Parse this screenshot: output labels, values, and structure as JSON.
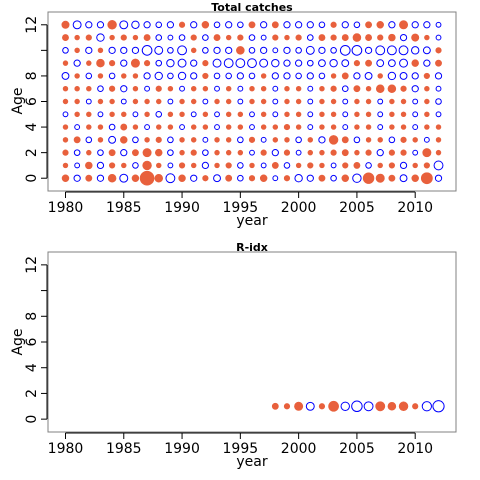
{
  "chart_data": [
    {
      "type": "scatter",
      "title": "Total catches",
      "xlabel": "year",
      "ylabel": "Age",
      "xlim": [
        1978.5,
        2013.5
      ],
      "ylim": [
        -1,
        13
      ],
      "x_ticks": [
        "1980",
        "1985",
        "1990",
        "1995",
        "2000",
        "2005",
        "2010"
      ],
      "y_ticks": [
        "0",
        "2",
        "4",
        "6",
        "8",
        "12"
      ],
      "grid": false,
      "years": [
        1980,
        1981,
        1982,
        1983,
        1984,
        1985,
        1986,
        1987,
        1988,
        1989,
        1990,
        1991,
        1992,
        1993,
        1994,
        1995,
        1996,
        1997,
        1998,
        1999,
        2000,
        2001,
        2002,
        2003,
        2004,
        2005,
        2006,
        2007,
        2008,
        2009,
        2010,
        2011,
        2012
      ],
      "ages": [
        0,
        1,
        2,
        3,
        4,
        5,
        6,
        7,
        8,
        9,
        10,
        11,
        12
      ],
      "encoding": "signed residual; positive = filled red, negative = open blue",
      "residuals": [
        [
          0.6,
          -0.5,
          0.5,
          -0.5,
          0.8,
          -0.8,
          0.6,
          2.5,
          0.8,
          -1.0,
          0.6,
          -0.5,
          0.4,
          -0.6,
          0.5,
          -0.4,
          0.4,
          0.6,
          -0.3,
          0.4,
          -0.7,
          -0.5,
          0.5,
          -0.4,
          0.6,
          -0.9,
          1.5,
          0.9,
          0.5,
          -0.6,
          0.6,
          1.6,
          -0.5
        ],
        [
          0.3,
          -0.3,
          0.6,
          -0.5,
          0.4,
          0.3,
          -0.4,
          1.0,
          0.3,
          -0.3,
          0.4,
          0.3,
          -0.5,
          0.3,
          0.4,
          -0.4,
          0.3,
          -0.3,
          0.5,
          -0.4,
          0.3,
          0.4,
          0.3,
          -0.3,
          0.4,
          0.5,
          -0.4,
          0.3,
          0.4,
          -0.5,
          0.3,
          0.4,
          -1.0
        ],
        [
          0.4,
          -0.4,
          0.3,
          -0.4,
          0.5,
          -0.5,
          0.5,
          0.9,
          0.6,
          -0.4,
          0.3,
          0.4,
          -0.4,
          0.3,
          0.3,
          0.3,
          -0.3,
          0.4,
          -0.5,
          0.4,
          -0.3,
          0.3,
          0.3,
          0.4,
          0.5,
          0.3,
          0.4,
          -0.5,
          0.4,
          0.4,
          -0.3,
          0.9,
          0.3
        ],
        [
          0.3,
          0.5,
          -0.4,
          0.3,
          -0.6,
          0.6,
          -0.4,
          0.3,
          0.4,
          -0.4,
          0.3,
          0.3,
          -0.3,
          0.3,
          0.3,
          -0.4,
          0.4,
          -0.3,
          0.3,
          0.3,
          -0.4,
          0.3,
          -0.5,
          1.0,
          0.5,
          -0.4,
          0.3,
          0.3,
          -0.4,
          0.4,
          0.3,
          -0.3,
          0.3
        ],
        [
          0.3,
          -0.3,
          0.3,
          0.3,
          -0.4,
          0.5,
          0.3,
          -0.3,
          0.3,
          0.3,
          -0.3,
          0.3,
          0.3,
          -0.3,
          0.3,
          0.3,
          -0.3,
          0.3,
          0.3,
          0.4,
          0.3,
          -0.3,
          0.3,
          0.3,
          -0.3,
          0.3,
          0.3,
          -0.3,
          0.3,
          0.3,
          -0.3,
          0.3,
          0.3
        ],
        [
          -0.3,
          0.3,
          0.3,
          -0.3,
          0.3,
          0.3,
          -0.3,
          0.3,
          -0.4,
          0.3,
          0.3,
          -0.3,
          0.3,
          -0.3,
          0.3,
          0.3,
          -0.3,
          0.3,
          -0.3,
          0.3,
          0.3,
          -0.3,
          0.3,
          0.3,
          -0.3,
          0.3,
          0.3,
          -0.3,
          0.3,
          0.3,
          -0.3,
          0.3,
          -0.3
        ],
        [
          0.3,
          0.3,
          -0.3,
          0.3,
          0.3,
          -0.3,
          0.3,
          0.3,
          0.3,
          -0.3,
          0.3,
          0.3,
          -0.3,
          0.3,
          0.3,
          -0.3,
          0.3,
          0.3,
          -0.3,
          0.3,
          0.3,
          -0.3,
          0.3,
          0.3,
          -0.3,
          0.3,
          0.3,
          -0.3,
          0.3,
          0.3,
          -0.3,
          0.3,
          -0.4
        ],
        [
          0.3,
          0.3,
          0.3,
          -0.4,
          0.4,
          -0.5,
          0.3,
          -0.3,
          0.4,
          0.3,
          -0.3,
          0.3,
          0.3,
          -0.3,
          0.3,
          -0.3,
          0.3,
          0.3,
          -0.3,
          0.3,
          0.3,
          -0.3,
          0.3,
          0.4,
          -0.4,
          0.5,
          0.3,
          0.8,
          0.8,
          0.4,
          -0.5,
          0.3,
          -0.3
        ],
        [
          -0.6,
          0.3,
          -0.4,
          0.3,
          -0.4,
          0.3,
          0.3,
          -0.5,
          -0.7,
          -0.4,
          -0.7,
          -0.5,
          0.4,
          -0.4,
          -0.4,
          -0.5,
          -0.4,
          0.3,
          -0.5,
          -0.5,
          -0.4,
          -0.5,
          -0.4,
          0.3,
          0.5,
          -0.5,
          -0.6,
          0.3,
          -0.7,
          -0.6,
          -0.5,
          0.4,
          -0.5
        ],
        [
          0.3,
          -0.5,
          0.3,
          0.8,
          0.4,
          -0.5,
          0.9,
          0.4,
          -0.4,
          -0.7,
          -0.8,
          -0.5,
          0.4,
          -0.8,
          -1.0,
          -1.0,
          -1.0,
          -0.8,
          -0.7,
          -0.5,
          -0.5,
          -0.4,
          -0.6,
          -0.7,
          -0.6,
          0.4,
          0.5,
          -0.6,
          -0.6,
          -0.8,
          0.6,
          -0.5,
          0.5
        ],
        [
          -0.4,
          0.3,
          -0.5,
          0.3,
          -0.5,
          -0.5,
          -0.5,
          -1.2,
          -0.8,
          -0.4,
          -1.0,
          0.3,
          -0.4,
          -0.5,
          -0.5,
          0.8,
          -0.4,
          -0.5,
          -0.3,
          -0.5,
          -0.4,
          -0.8,
          -0.5,
          -0.4,
          -1.2,
          -1.2,
          -0.5,
          -1.0,
          -1.0,
          -1.0,
          -0.7,
          -0.6,
          0.4
        ],
        [
          0.5,
          0.3,
          0.4,
          -0.7,
          0.3,
          0.4,
          0.3,
          0.5,
          -0.4,
          -0.3,
          -0.4,
          0.4,
          -0.4,
          0.5,
          0.3,
          0.4,
          -0.4,
          -0.3,
          0.4,
          0.3,
          0.4,
          -0.4,
          0.5,
          0.4,
          0.5,
          0.8,
          0.5,
          0.4,
          0.6,
          -0.5,
          0.7,
          0.3,
          -0.3
        ],
        [
          0.7,
          -0.8,
          -0.5,
          -0.5,
          1.0,
          -0.8,
          -0.7,
          -0.5,
          -0.4,
          -0.5,
          0.4,
          -0.5,
          0.6,
          -0.4,
          -0.5,
          -0.4,
          0.5,
          -0.5,
          0.5,
          -0.5,
          -0.5,
          -0.5,
          -0.4,
          0.4,
          -0.5,
          -0.4,
          0.5,
          0.6,
          -0.5,
          0.9,
          -0.5,
          -0.5,
          -0.3
        ]
      ]
    },
    {
      "type": "scatter",
      "title": "R-idx",
      "xlabel": "year",
      "ylabel": "Age",
      "xlim": [
        1978.5,
        2013.5
      ],
      "ylim": [
        -1,
        13
      ],
      "x_ticks": [
        "1980",
        "1985",
        "1990",
        "1995",
        "2000",
        "2005",
        "2010"
      ],
      "y_ticks": [
        "0",
        "2",
        "4",
        "6",
        "8",
        "12"
      ],
      "grid": false,
      "encoding": "signed residual; positive = filled red, negative = open blue",
      "points": [
        {
          "year": 1998,
          "age": 1,
          "residual": 0.5
        },
        {
          "year": 1999,
          "age": 1,
          "residual": 0.4
        },
        {
          "year": 2000,
          "age": 1,
          "residual": 0.9
        },
        {
          "year": 2001,
          "age": 1,
          "residual": -0.8
        },
        {
          "year": 2002,
          "age": 1,
          "residual": 0.4
        },
        {
          "year": 2003,
          "age": 1,
          "residual": 1.3
        },
        {
          "year": 2004,
          "age": 1,
          "residual": -0.9
        },
        {
          "year": 2005,
          "age": 1,
          "residual": -1.4
        },
        {
          "year": 2006,
          "age": 1,
          "residual": -1.0
        },
        {
          "year": 2007,
          "age": 1,
          "residual": 1.1
        },
        {
          "year": 2008,
          "age": 1,
          "residual": 0.8
        },
        {
          "year": 2009,
          "age": 1,
          "residual": 1.0
        },
        {
          "year": 2010,
          "age": 1,
          "residual": 0.4
        },
        {
          "year": 2011,
          "age": 1,
          "residual": -1.1
        },
        {
          "year": 2012,
          "age": 1,
          "residual": -1.6
        }
      ]
    }
  ],
  "colors": {
    "positive": "#e8603c",
    "negative": "#0000ff",
    "axis": "#000000",
    "frame": "#808080"
  }
}
